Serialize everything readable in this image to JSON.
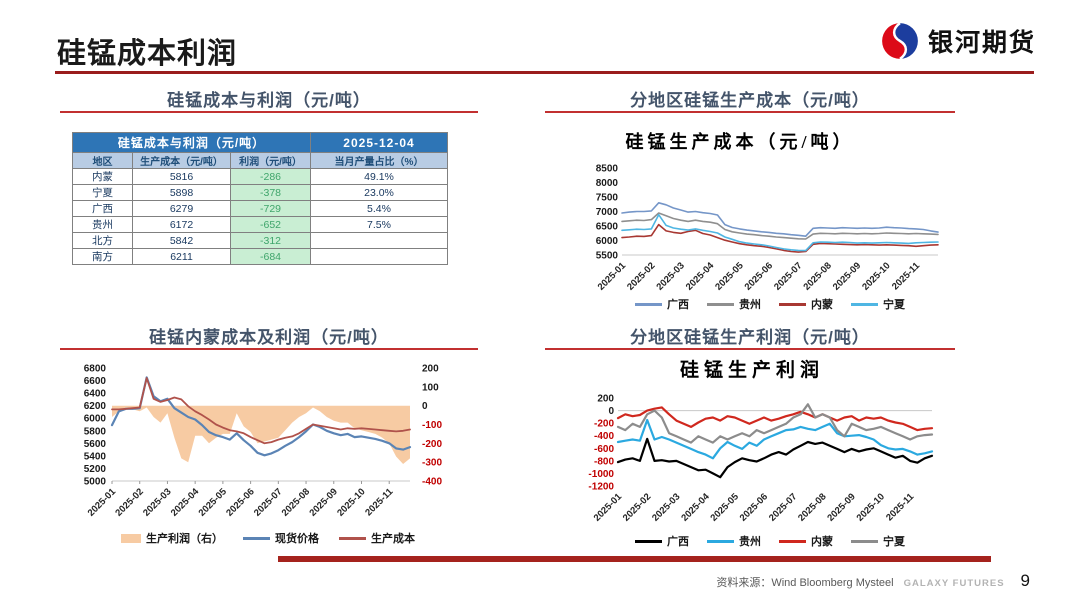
{
  "page": {
    "title": "硅锰成本利润",
    "source": "资料来源：Wind Bloomberg Mysteel",
    "brand": "GALAXY FUTURES",
    "page_number": "9",
    "accent_red": "#9A1C1C"
  },
  "logo": {
    "text": "银河期货",
    "red": "#DC0A18",
    "blue": "#1C3D9E"
  },
  "panels": {
    "table_panel": {
      "title": "硅锰成本与利润（元/吨）"
    },
    "cost_panel": {
      "title": "分地区硅锰生产成本（元/吨）"
    },
    "im_panel": {
      "title": "硅锰内蒙成本及利润（元/吨）"
    },
    "profit_panel": {
      "title": "分地区硅锰生产利润（元/吨）"
    }
  },
  "table": {
    "header_title": "硅锰成本与利润（元/吨）",
    "header_date": "2025-12-04",
    "columns": [
      "地区",
      "生产成本（元/吨）",
      "利润（元/吨）",
      "当月产量占比（%）"
    ],
    "rows": [
      [
        "内蒙",
        "5816",
        "-286",
        "49.1%"
      ],
      [
        "宁夏",
        "5898",
        "-378",
        "23.0%"
      ],
      [
        "广西",
        "6279",
        "-729",
        "5.4%"
      ],
      [
        "贵州",
        "6172",
        "-652",
        "7.5%"
      ],
      [
        "北方",
        "5842",
        "-312",
        ""
      ],
      [
        "南方",
        "6211",
        "-684",
        ""
      ]
    ]
  },
  "chart_data": [
    {
      "id": "regional_cost",
      "type": "line",
      "title": "硅锰生产成本（元/吨）",
      "x_labels": [
        "2025-01",
        "2025-02",
        "2025-03",
        "2025-04",
        "2025-05",
        "2025-06",
        "2025-07",
        "2025-08",
        "2025-09",
        "2025-10",
        "2025-11"
      ],
      "ylim": [
        5500,
        8500
      ],
      "yticks": [
        5500,
        6000,
        6500,
        7000,
        7500,
        8000,
        8500
      ],
      "legend_position": "bottom",
      "grid": false,
      "series": [
        {
          "name": "广西",
          "color": "#7596C8",
          "values": [
            6950,
            6980,
            7000,
            7000,
            7020,
            7300,
            7230,
            7120,
            7050,
            6980,
            7000,
            6960,
            6930,
            6880,
            6550,
            6450,
            6400,
            6360,
            6330,
            6300,
            6280,
            6250,
            6230,
            6200,
            6180,
            6150,
            6420,
            6440,
            6430,
            6420,
            6440,
            6430,
            6420,
            6430,
            6420,
            6430,
            6460,
            6440,
            6430,
            6410,
            6400,
            6380,
            6330,
            6290
          ]
        },
        {
          "name": "贵州",
          "color": "#8F8F8F",
          "values": [
            6660,
            6680,
            6700,
            6690,
            6720,
            6950,
            6850,
            6760,
            6700,
            6660,
            6700,
            6660,
            6630,
            6580,
            6380,
            6300,
            6260,
            6220,
            6200,
            6170,
            6150,
            6120,
            6100,
            6080,
            6060,
            6050,
            6220,
            6250,
            6240,
            6230,
            6250,
            6240,
            6230,
            6240,
            6230,
            6240,
            6260,
            6250,
            6240,
            6230,
            6240,
            6230,
            6220,
            6210
          ]
        },
        {
          "name": "内蒙",
          "color": "#A83832",
          "values": [
            6100,
            6120,
            6150,
            6140,
            6170,
            6550,
            6330,
            6280,
            6250,
            6310,
            6350,
            6240,
            6190,
            6100,
            6010,
            5950,
            5890,
            5850,
            5820,
            5800,
            5760,
            5710,
            5660,
            5620,
            5600,
            5620,
            5870,
            5900,
            5890,
            5880,
            5870,
            5860,
            5850,
            5860,
            5850,
            5840,
            5850,
            5840,
            5830,
            5820,
            5800,
            5820,
            5840,
            5850
          ]
        },
        {
          "name": "宁夏",
          "color": "#4FB6E3",
          "values": [
            6350,
            6370,
            6390,
            6380,
            6400,
            6890,
            6520,
            6430,
            6390,
            6360,
            6400,
            6350,
            6310,
            6260,
            6120,
            6040,
            5960,
            5910,
            5880,
            5850,
            5810,
            5760,
            5710,
            5680,
            5660,
            5650,
            5920,
            5950,
            5940,
            5930,
            5940,
            5930,
            5910,
            5920,
            5910,
            5920,
            5930,
            5920,
            5910,
            5900,
            5920,
            5930,
            5940,
            5950
          ]
        }
      ]
    },
    {
      "id": "inner_mongolia_cost_profit",
      "type": "combo",
      "x_labels": [
        "2025-01",
        "2025-02",
        "2025-03",
        "2025-04",
        "2025-05",
        "2025-06",
        "2025-07",
        "2025-08",
        "2025-09",
        "2025-10",
        "2025-11"
      ],
      "left_ylim": [
        5000,
        6800
      ],
      "left_yticks": [
        5000,
        5200,
        5400,
        5600,
        5800,
        6000,
        6200,
        6400,
        6600,
        6800
      ],
      "right_ylim": [
        -400,
        200
      ],
      "right_yticks": [
        -400,
        -300,
        -200,
        -100,
        0,
        100,
        200
      ],
      "legend_position": "bottom",
      "grid": false,
      "series": [
        {
          "name": "生产利润（右）",
          "type": "area",
          "axis": "right",
          "color": "#F7CBA3",
          "values": [
            -60,
            -30,
            -10,
            -20,
            -30,
            -10,
            -60,
            -90,
            -40,
            -170,
            -280,
            -300,
            -160,
            -160,
            -200,
            -170,
            -150,
            -150,
            -40,
            -110,
            -140,
            -200,
            -190,
            -180,
            -170,
            -130,
            -90,
            -60,
            -40,
            -10,
            -30,
            -60,
            -80,
            -90,
            -90,
            -120,
            -130,
            -140,
            -150,
            -170,
            -200,
            -270,
            -310,
            -280
          ]
        },
        {
          "name": "现货价格",
          "type": "line",
          "axis": "left",
          "color": "#5B84B5",
          "values": [
            5890,
            6110,
            6150,
            6150,
            6160,
            6650,
            6350,
            6270,
            6310,
            6160,
            6090,
            6020,
            5980,
            5890,
            5780,
            5730,
            5700,
            5660,
            5760,
            5650,
            5560,
            5450,
            5410,
            5440,
            5490,
            5560,
            5620,
            5700,
            5790,
            5900,
            5860,
            5800,
            5760,
            5730,
            5750,
            5700,
            5710,
            5690,
            5670,
            5640,
            5600,
            5520,
            5500,
            5540
          ]
        },
        {
          "name": "生产成本",
          "type": "line",
          "axis": "left",
          "color": "#B0524B",
          "values": [
            6140,
            6140,
            6150,
            6160,
            6170,
            6640,
            6310,
            6260,
            6290,
            6330,
            6300,
            6190,
            6110,
            6050,
            5980,
            5900,
            5850,
            5810,
            5790,
            5760,
            5700,
            5650,
            5600,
            5620,
            5660,
            5690,
            5710,
            5760,
            5830,
            5900,
            5880,
            5860,
            5840,
            5820,
            5840,
            5830,
            5840,
            5830,
            5820,
            5810,
            5800,
            5790,
            5800,
            5820
          ]
        }
      ]
    },
    {
      "id": "regional_profit",
      "type": "line",
      "title": "硅锰生产利润",
      "x_labels": [
        "2025-01",
        "2025-02",
        "2025-03",
        "2025-04",
        "2025-05",
        "2025-06",
        "2025-07",
        "2025-08",
        "2025-09",
        "2025-10",
        "2025-11"
      ],
      "ylim": [
        -1200,
        200
      ],
      "yticks": [
        -1200,
        -1000,
        -800,
        -600,
        -400,
        -200,
        0,
        200
      ],
      "legend_position": "bottom",
      "grid": "zero-line-only",
      "series": [
        {
          "name": "广西",
          "color": "#000000",
          "values": [
            -820,
            -780,
            -760,
            -800,
            -450,
            -800,
            -790,
            -810,
            -800,
            -850,
            -900,
            -950,
            -940,
            -1000,
            -1060,
            -900,
            -820,
            -760,
            -790,
            -810,
            -760,
            -700,
            -660,
            -700,
            -620,
            -560,
            -500,
            -530,
            -510,
            -560,
            -610,
            -660,
            -610,
            -650,
            -620,
            -600,
            -650,
            -700,
            -750,
            -720,
            -800,
            -830,
            -760,
            -720
          ]
        },
        {
          "name": "贵州",
          "color": "#2BA9E0",
          "values": [
            -500,
            -480,
            -460,
            -480,
            -150,
            -460,
            -420,
            -460,
            -510,
            -560,
            -610,
            -660,
            -700,
            -760,
            -600,
            -500,
            -560,
            -610,
            -510,
            -560,
            -460,
            -410,
            -360,
            -310,
            -300,
            -260,
            -290,
            -310,
            -260,
            -210,
            -360,
            -410,
            -400,
            -390,
            -420,
            -460,
            -550,
            -600,
            -620,
            -610,
            -650,
            -700,
            -680,
            -650
          ]
        },
        {
          "name": "内蒙",
          "color": "#D0281E",
          "values": [
            -120,
            -60,
            -90,
            -70,
            0,
            30,
            50,
            -60,
            -160,
            -210,
            -260,
            -190,
            -130,
            -110,
            -160,
            -90,
            -110,
            -160,
            -210,
            -160,
            -110,
            -160,
            -130,
            -90,
            -60,
            -20,
            -60,
            -110,
            -60,
            -110,
            -160,
            -110,
            -90,
            -160,
            -110,
            -130,
            -110,
            -160,
            -190,
            -210,
            -260,
            -310,
            -290,
            -280
          ]
        },
        {
          "name": "宁夏",
          "color": "#8C8C8C",
          "values": [
            -260,
            -310,
            -210,
            -260,
            -60,
            0,
            -110,
            -360,
            -410,
            -460,
            -510,
            -410,
            -460,
            -510,
            -410,
            -460,
            -410,
            -360,
            -410,
            -310,
            -360,
            -310,
            -260,
            -210,
            -110,
            -60,
            100,
            -110,
            -60,
            -110,
            -310,
            -410,
            -210,
            -260,
            -310,
            -290,
            -260,
            -310,
            -360,
            -410,
            -460,
            -410,
            -390,
            -380
          ]
        }
      ]
    }
  ]
}
